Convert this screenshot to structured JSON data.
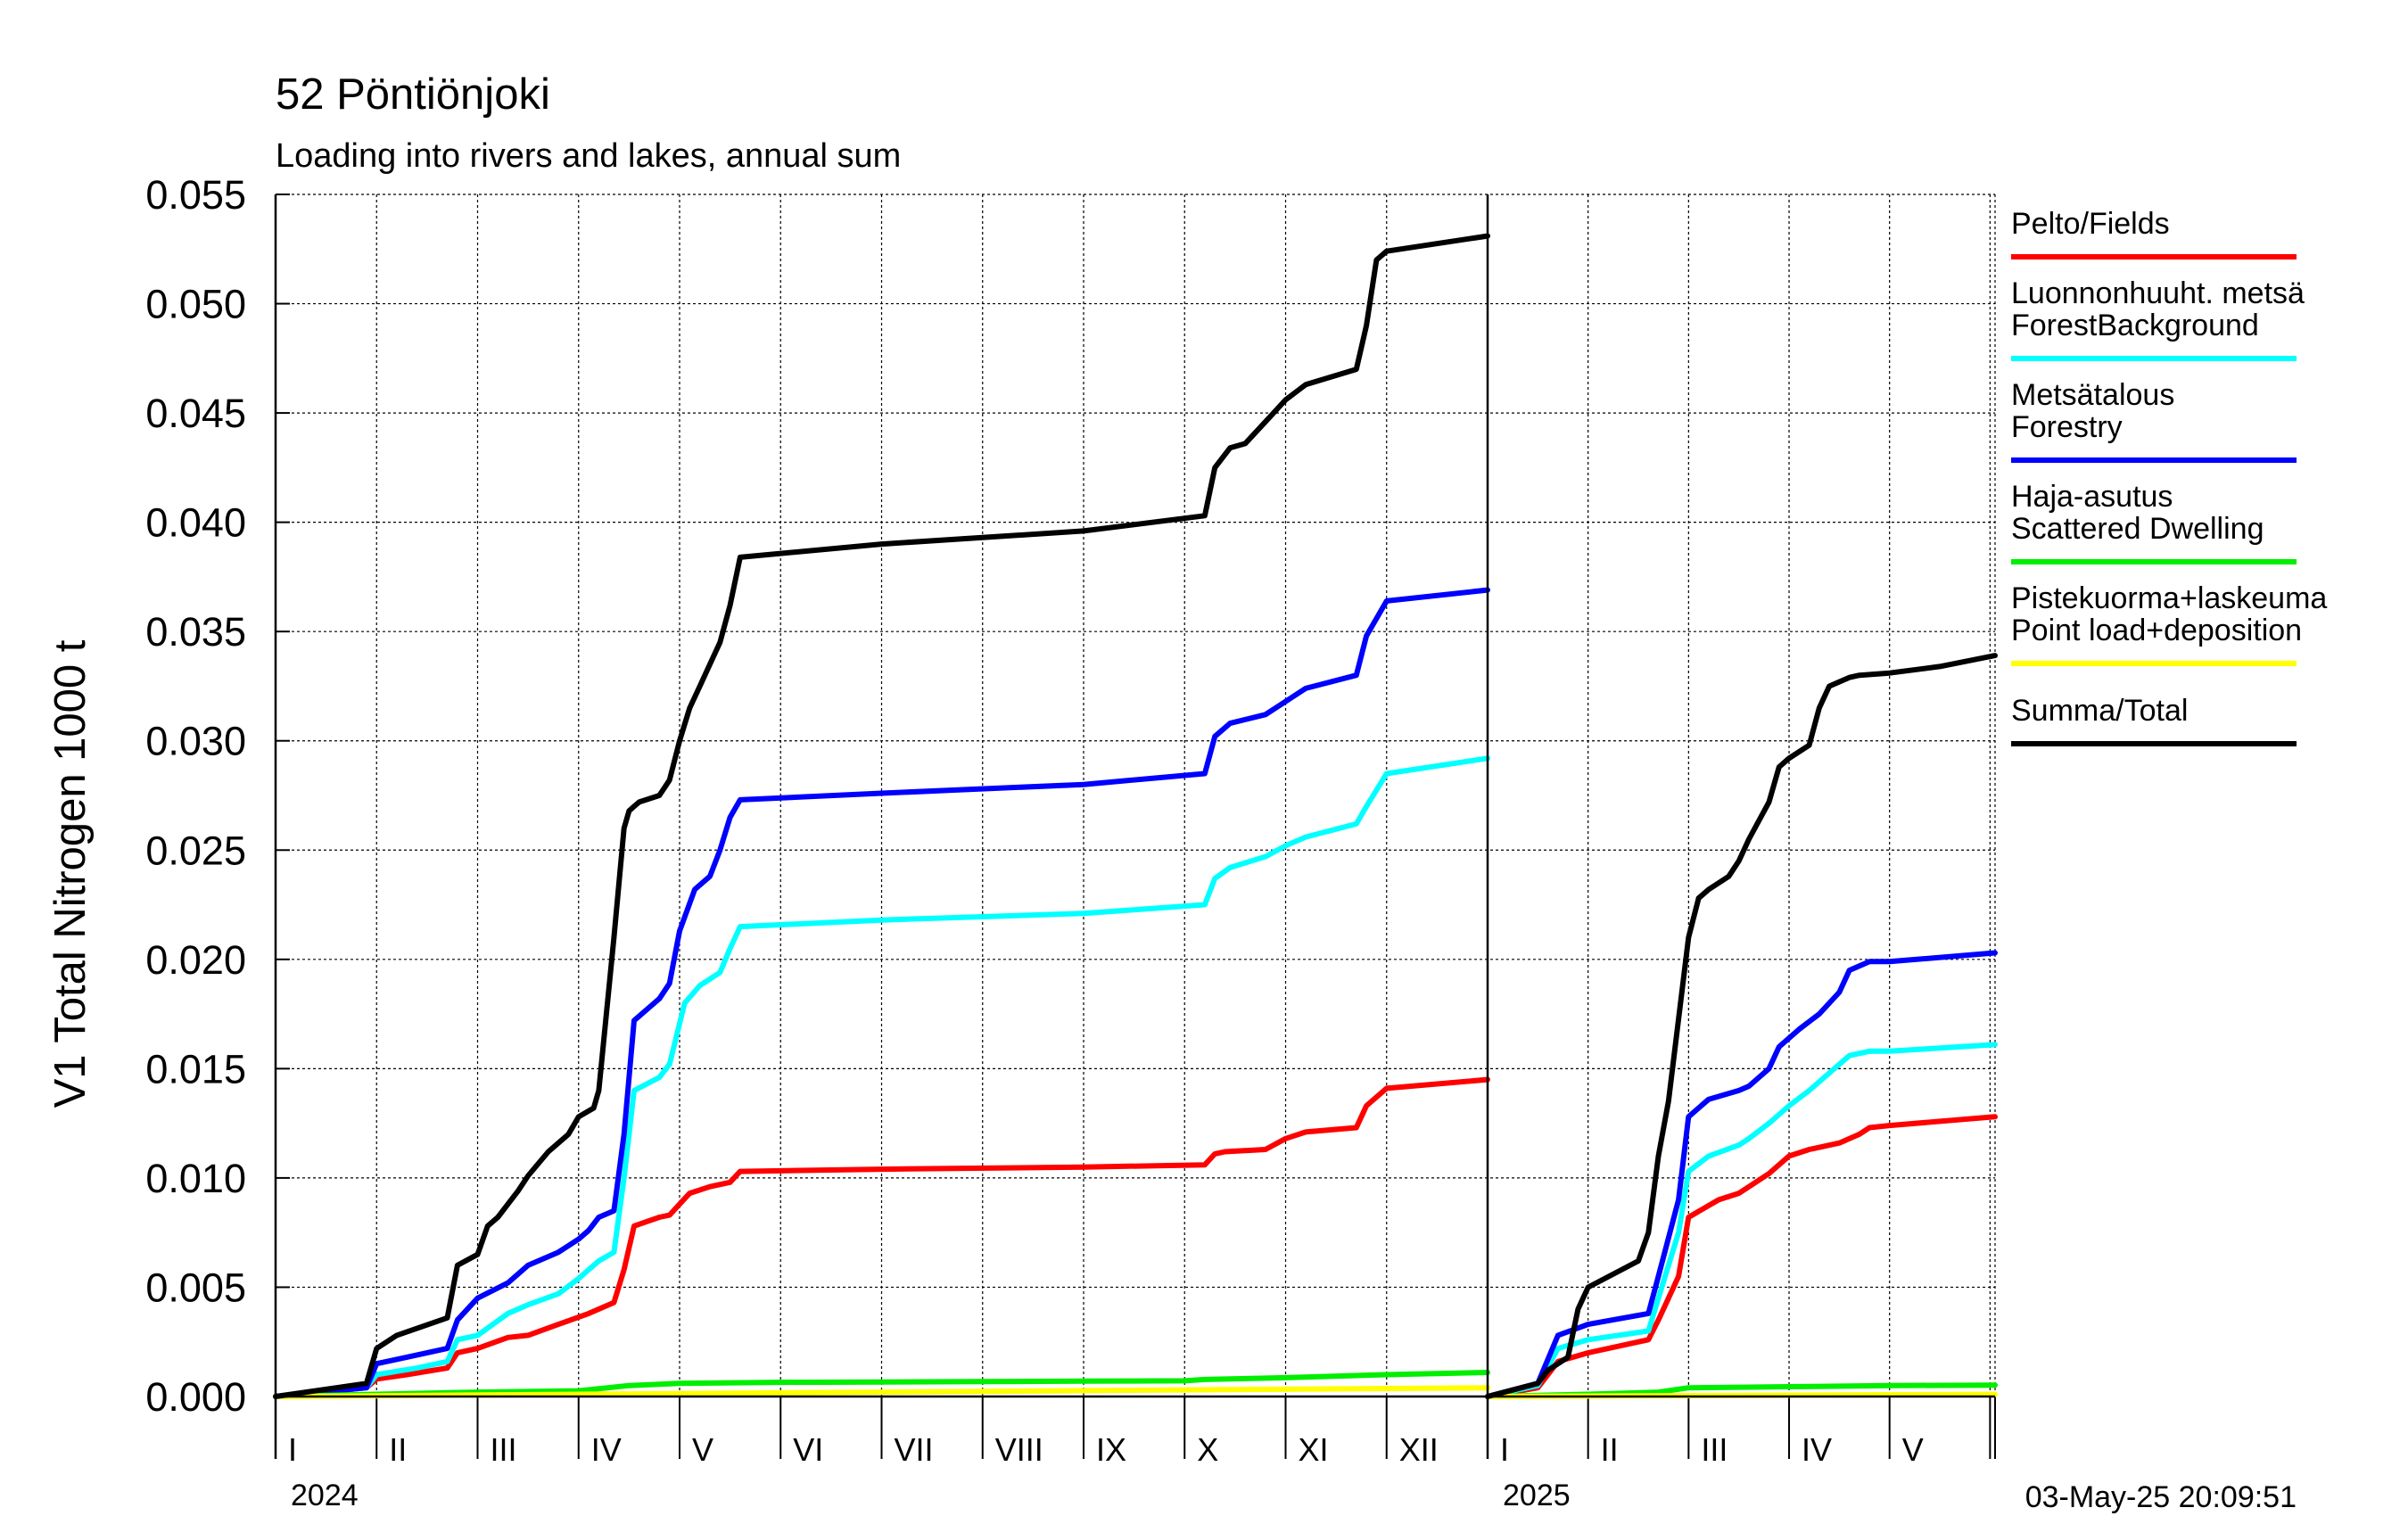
{
  "chart_data": {
    "type": "line",
    "title": "52 Pöntiönjoki",
    "subtitle": "Loading into rivers and lakes, annual sum",
    "ylabel": "V1 Total Nitrogen 1000 t",
    "ylim": [
      0,
      0.055
    ],
    "y_ticks": [
      "0.000",
      "0.005",
      "0.010",
      "0.015",
      "0.020",
      "0.025",
      "0.030",
      "0.035",
      "0.040",
      "0.045",
      "0.050",
      "0.055"
    ],
    "grid": true,
    "legend_position": "right",
    "timestamp": "03-May-25 20:09:51",
    "panels": [
      {
        "year_label": "2024",
        "x_unit": "month",
        "xlim": [
          0,
          12
        ],
        "month_labels": [
          "I",
          "II",
          "III",
          "IV",
          "V",
          "VI",
          "VII",
          "VIII",
          "IX",
          "X",
          "XI",
          "XII"
        ]
      },
      {
        "year_label": "2025",
        "x_unit": "month",
        "xlim": [
          0,
          5.05
        ],
        "month_labels": [
          "I",
          "II",
          "III",
          "IV",
          "V"
        ]
      }
    ],
    "series": [
      {
        "name": "Pelto/Fields",
        "color": "#ff0000",
        "panels": [
          {
            "x": [
              0,
              0.9,
              1,
              1.3,
              1.7,
              1.8,
              2.0,
              2.3,
              2.5,
              2.8,
              3.1,
              3.2,
              3.35,
              3.45,
              3.55,
              3.8,
              3.9,
              4.0,
              4.1,
              4.3,
              4.5,
              4.6,
              6,
              8,
              9.2,
              9.3,
              9.4,
              9.8,
              10.0,
              10.2,
              10.7,
              10.8,
              11.0,
              12
            ],
            "y": [
              0,
              0.0004,
              0.0008,
              0.001,
              0.0013,
              0.002,
              0.0022,
              0.0027,
              0.0028,
              0.0033,
              0.0038,
              0.004,
              0.0043,
              0.0058,
              0.0078,
              0.0082,
              0.0083,
              0.0088,
              0.0093,
              0.0096,
              0.0098,
              0.0103,
              0.0104,
              0.0105,
              0.0106,
              0.0111,
              0.0112,
              0.0113,
              0.0118,
              0.0121,
              0.0123,
              0.0133,
              0.0141,
              0.0145
            ]
          },
          {
            "x": [
              0,
              0.5,
              0.7,
              1.0,
              1.6,
              1.7,
              1.9,
              2.0,
              2.3,
              2.5,
              2.6,
              2.8,
              3.0,
              3.2,
              3.5,
              3.7,
              3.8,
              4.0,
              5.05
            ],
            "y": [
              0,
              0.0004,
              0.0016,
              0.002,
              0.0026,
              0.0035,
              0.0055,
              0.0082,
              0.009,
              0.0093,
              0.0096,
              0.0102,
              0.011,
              0.0113,
              0.0116,
              0.012,
              0.0123,
              0.0124,
              0.0128
            ]
          }
        ]
      },
      {
        "name": "Luonnonhuuht. metsä ForestBackground",
        "color": "#00ffff",
        "panels": [
          {
            "x": [
              0,
              0.9,
              1,
              1.4,
              1.7,
              1.8,
              2.0,
              2.3,
              2.5,
              2.8,
              3.0,
              3.1,
              3.2,
              3.35,
              3.45,
              3.55,
              3.8,
              3.9,
              4.05,
              4.2,
              4.4,
              4.5,
              4.6,
              6,
              8,
              9.2,
              9.3,
              9.45,
              9.8,
              10.0,
              10.2,
              10.7,
              10.8,
              11.0,
              12
            ],
            "y": [
              0,
              0.0004,
              0.001,
              0.0013,
              0.0016,
              0.0026,
              0.0028,
              0.0038,
              0.0042,
              0.0047,
              0.0054,
              0.0058,
              0.0062,
              0.0066,
              0.01,
              0.014,
              0.0146,
              0.0152,
              0.018,
              0.0188,
              0.0194,
              0.0205,
              0.0215,
              0.0218,
              0.0221,
              0.0225,
              0.0237,
              0.0242,
              0.0247,
              0.0252,
              0.0256,
              0.0262,
              0.027,
              0.0285,
              0.0292
            ]
          },
          {
            "x": [
              0,
              0.5,
              0.7,
              1.0,
              1.6,
              1.7,
              1.9,
              2.0,
              2.2,
              2.5,
              2.6,
              2.8,
              3.0,
              3.2,
              3.4,
              3.6,
              3.8,
              4.0,
              5.05
            ],
            "y": [
              0,
              0.0005,
              0.0022,
              0.0026,
              0.003,
              0.0045,
              0.0075,
              0.0103,
              0.011,
              0.0115,
              0.0118,
              0.0125,
              0.0133,
              0.014,
              0.0148,
              0.0156,
              0.0158,
              0.0158,
              0.0161
            ]
          }
        ]
      },
      {
        "name": "Metsätalous Forestry",
        "color": "#0000ff",
        "panels": [
          {
            "x": [
              0,
              0.9,
              1,
              1.3,
              1.7,
              1.8,
              2.0,
              2.3,
              2.5,
              2.8,
              3.0,
              3.1,
              3.2,
              3.35,
              3.45,
              3.55,
              3.8,
              3.9,
              4.0,
              4.15,
              4.3,
              4.4,
              4.5,
              4.6,
              6,
              8,
              9.2,
              9.3,
              9.45,
              9.8,
              10.0,
              10.2,
              10.7,
              10.8,
              11.0,
              12
            ],
            "y": [
              0,
              0.0004,
              0.0015,
              0.0018,
              0.0022,
              0.0035,
              0.0045,
              0.0052,
              0.006,
              0.0066,
              0.0072,
              0.0076,
              0.0082,
              0.0085,
              0.012,
              0.0172,
              0.0182,
              0.0189,
              0.0213,
              0.0232,
              0.0238,
              0.025,
              0.0265,
              0.0273,
              0.0276,
              0.028,
              0.0285,
              0.0302,
              0.0308,
              0.0312,
              0.0318,
              0.0324,
              0.033,
              0.0348,
              0.0364,
              0.0369
            ]
          },
          {
            "x": [
              0,
              0.5,
              0.7,
              1.0,
              1.6,
              1.7,
              1.9,
              2.0,
              2.2,
              2.5,
              2.6,
              2.8,
              2.9,
              3.1,
              3.3,
              3.5,
              3.6,
              3.8,
              4.0,
              5.05
            ],
            "y": [
              0,
              0.0006,
              0.0028,
              0.0033,
              0.0038,
              0.0055,
              0.009,
              0.0128,
              0.0136,
              0.014,
              0.0142,
              0.015,
              0.016,
              0.0168,
              0.0175,
              0.0185,
              0.0195,
              0.0199,
              0.0199,
              0.0203
            ]
          }
        ]
      },
      {
        "name": "Haja-asutus Scattered Dwelling",
        "color": "#00ee00",
        "panels": [
          {
            "x": [
              0,
              1,
              2,
              3,
              3.5,
              4,
              5,
              6,
              7,
              8,
              9,
              9.2,
              10,
              11,
              12
            ],
            "y": [
              0,
              0.0001,
              0.0002,
              0.00026,
              0.0005,
              0.0006,
              0.00065,
              0.00066,
              0.00068,
              0.0007,
              0.00072,
              0.00078,
              0.00086,
              0.001,
              0.0011
            ]
          },
          {
            "x": [
              0,
              1,
              1.7,
              2.0,
              3.0,
              4.0,
              5.05
            ],
            "y": [
              0,
              0.0001,
              0.0002,
              0.0004,
              0.00045,
              0.0005,
              0.00052
            ]
          }
        ]
      },
      {
        "name": "Pistekuorma+laskeuma Point load+deposition",
        "color": "#ffff00",
        "panels": [
          {
            "x": [
              0,
              3,
              6,
              9,
              12
            ],
            "y": [
              0,
              0.0001,
              0.0002,
              0.0003,
              0.0004
            ]
          },
          {
            "x": [
              0,
              2,
              4,
              5.05
            ],
            "y": [
              0,
              4e-05,
              8e-05,
              0.0001
            ]
          }
        ]
      },
      {
        "name": "Summa/Total",
        "color": "#000000",
        "panels": [
          {
            "x": [
              0,
              0.9,
              1,
              1.2,
              1.7,
              1.8,
              2.0,
              2.1,
              2.2,
              2.4,
              2.5,
              2.7,
              2.9,
              3.0,
              3.15,
              3.2,
              3.35,
              3.45,
              3.5,
              3.55,
              3.6,
              3.8,
              3.9,
              4.0,
              4.1,
              4.2,
              4.3,
              4.4,
              4.5,
              4.6,
              6,
              8,
              9.2,
              9.3,
              9.45,
              9.6,
              9.8,
              10.0,
              10.2,
              10.7,
              10.8,
              10.9,
              11.0,
              12
            ],
            "y": [
              0,
              0.0006,
              0.0022,
              0.0028,
              0.0036,
              0.006,
              0.0065,
              0.0078,
              0.0082,
              0.0094,
              0.0101,
              0.0112,
              0.012,
              0.0128,
              0.0132,
              0.014,
              0.021,
              0.026,
              0.0268,
              0.027,
              0.0272,
              0.0275,
              0.0282,
              0.03,
              0.0315,
              0.0325,
              0.0335,
              0.0345,
              0.0362,
              0.0384,
              0.039,
              0.0396,
              0.0403,
              0.0425,
              0.0434,
              0.0436,
              0.0446,
              0.0456,
              0.0463,
              0.047,
              0.049,
              0.052,
              0.0524,
              0.0531
            ]
          },
          {
            "x": [
              0,
              0.5,
              0.6,
              0.8,
              0.9,
              1.0,
              1.5,
              1.6,
              1.7,
              1.8,
              2.0,
              2.1,
              2.2,
              2.4,
              2.5,
              2.6,
              2.8,
              2.9,
              3.0,
              3.2,
              3.3,
              3.4,
              3.6,
              3.7,
              4.0,
              4.5,
              5.05
            ],
            "y": [
              0,
              0.0006,
              0.0012,
              0.0018,
              0.004,
              0.005,
              0.0062,
              0.0075,
              0.011,
              0.0135,
              0.021,
              0.0228,
              0.0232,
              0.0238,
              0.0245,
              0.0255,
              0.0272,
              0.0288,
              0.0292,
              0.0298,
              0.0315,
              0.0325,
              0.0329,
              0.033,
              0.0331,
              0.0334,
              0.0339
            ]
          }
        ]
      }
    ]
  }
}
